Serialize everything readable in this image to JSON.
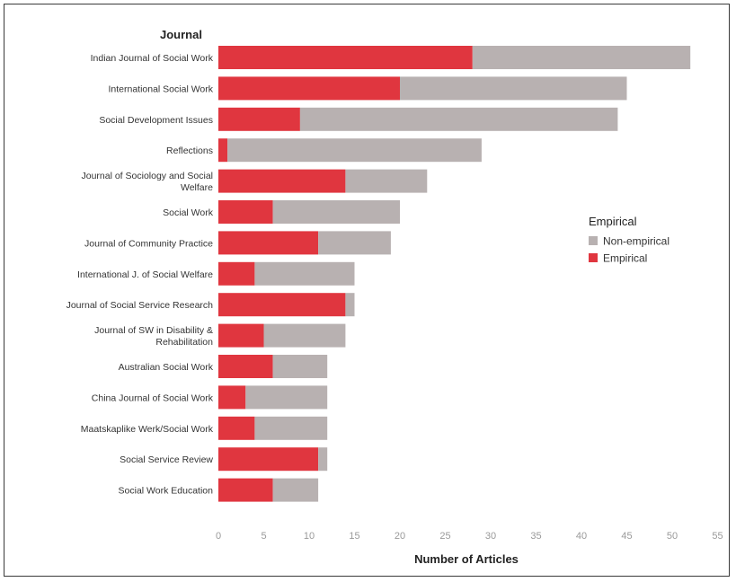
{
  "chart_data": {
    "type": "bar",
    "orientation": "horizontal",
    "stacked": true,
    "ylabel": "Journal",
    "xlabel": "Number of Articles",
    "xlim": [
      0,
      55
    ],
    "xticks": [
      0,
      5,
      10,
      15,
      20,
      25,
      30,
      35,
      40,
      45,
      50,
      55
    ],
    "grid": false,
    "legend_position": "right",
    "legend_title": "Empirical",
    "legend": [
      {
        "name": "Non-empirical",
        "color": "#b8b1b1"
      },
      {
        "name": "Empirical",
        "color": "#e0363f"
      }
    ],
    "categories": [
      [
        "Indian Journal of Social Work"
      ],
      [
        "International Social Work"
      ],
      [
        "Social Development Issues"
      ],
      [
        "Reflections"
      ],
      [
        "Journal of Sociology and Social",
        "Welfare"
      ],
      [
        "Social Work"
      ],
      [
        "Journal of Community Practice"
      ],
      [
        "International J. of Social Welfare"
      ],
      [
        "Journal of Social Service Research"
      ],
      [
        "Journal of SW in Disability &",
        "Rehabilitation"
      ],
      [
        "Australian Social Work"
      ],
      [
        "China Journal of Social Work"
      ],
      [
        "Maatskaplike Werk/Social Work"
      ],
      [
        "Social Service Review"
      ],
      [
        "Social Work Education"
      ]
    ],
    "series": [
      {
        "name": "Empirical",
        "color": "#e0363f",
        "values": [
          28,
          20,
          9,
          1,
          14,
          6,
          11,
          4,
          14,
          5,
          6,
          3,
          4,
          11,
          6
        ]
      },
      {
        "name": "Non-empirical",
        "color": "#b8b1b1",
        "values": [
          24,
          25,
          35,
          28,
          9,
          14,
          8,
          11,
          1,
          9,
          6,
          9,
          8,
          1,
          5
        ]
      }
    ]
  }
}
